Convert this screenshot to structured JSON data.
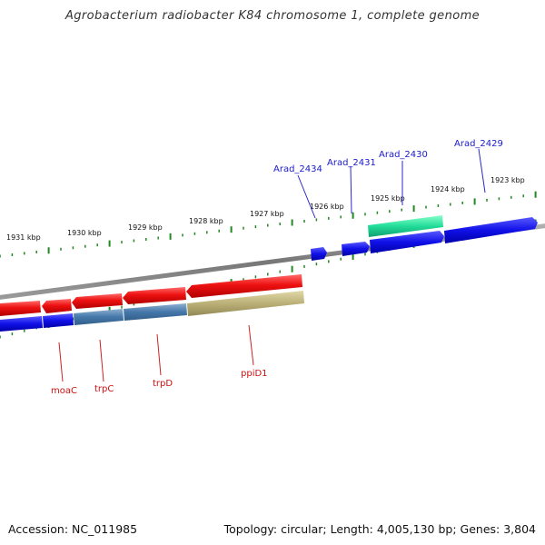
{
  "title": "Agrobacterium radiobacter K84 chromosome 1, complete genome",
  "footer": {
    "accession": "Accession: NC_011985",
    "summary": "Topology: circular; Length: 4,005,130 bp; Genes: 3,804"
  },
  "scale_labels": [
    {
      "text": "1931 kbp"
    },
    {
      "text": "1930 kbp"
    },
    {
      "text": "1929 kbp"
    },
    {
      "text": "1928 kbp"
    },
    {
      "text": "1927 kbp"
    },
    {
      "text": "1926 kbp"
    },
    {
      "text": "1925 kbp"
    },
    {
      "text": "1924 kbp"
    },
    {
      "text": "1923 kbp"
    }
  ],
  "top_labels": [
    {
      "text": "Arad_2434"
    },
    {
      "text": "Arad_2431"
    },
    {
      "text": "Arad_2430"
    },
    {
      "text": "Arad_2429"
    }
  ],
  "bottom_labels": [
    {
      "text": "moaC"
    },
    {
      "text": "trpC"
    },
    {
      "text": "trpD"
    },
    {
      "text": "ppiD1"
    }
  ],
  "colors": {
    "forward_gene": "#1010e8",
    "reverse_gene": "#ee1111",
    "rna_gene": "#22dd99",
    "cog_blue": "#4477aa",
    "cog_olive": "#bbb077",
    "backbone": "#888888",
    "tick": "#228822",
    "label_blue": "#1a1acc",
    "label_red": "#cc1111"
  }
}
